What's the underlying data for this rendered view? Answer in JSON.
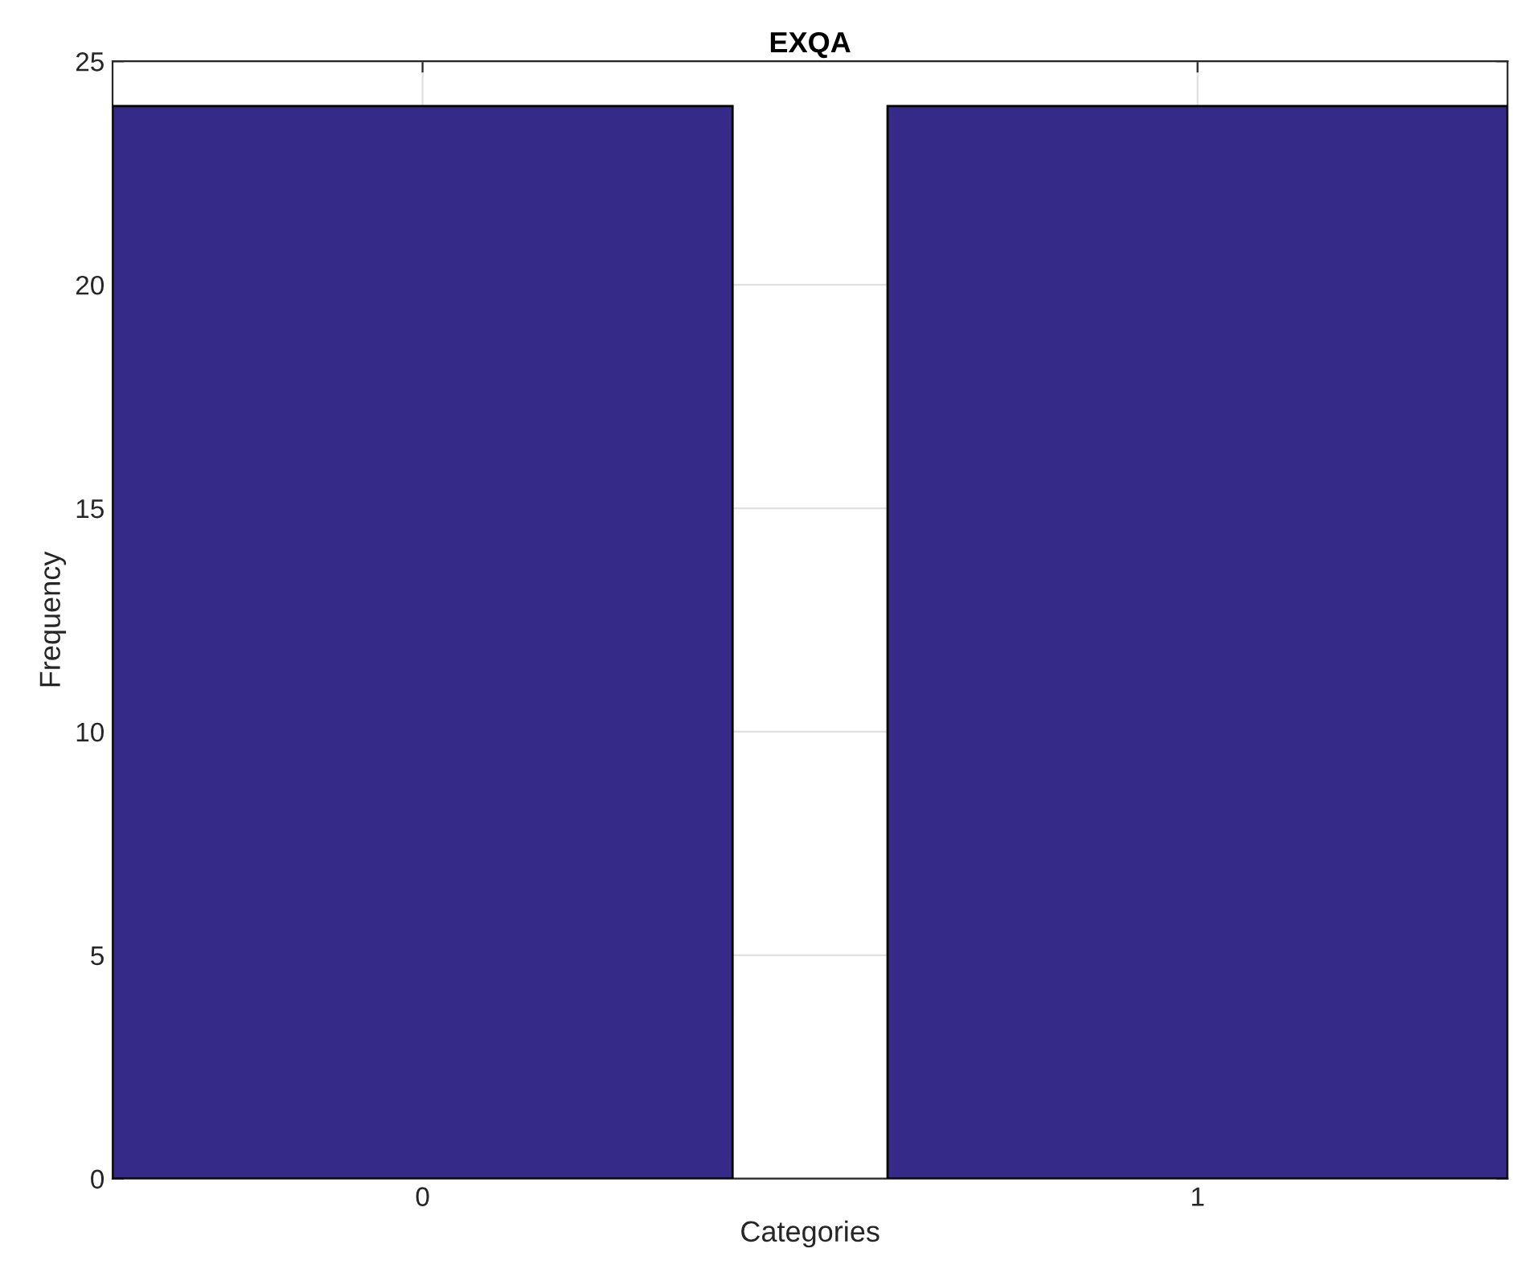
{
  "chart_data": {
    "type": "bar",
    "title": "EXQA",
    "xlabel": "Categories",
    "ylabel": "Frequency",
    "categories": [
      "0",
      "1"
    ],
    "values": [
      24,
      24
    ],
    "color": "#352a87",
    "ylim": [
      0,
      25
    ],
    "yticks": [
      0,
      5,
      10,
      15,
      20,
      25
    ],
    "grid": true
  }
}
